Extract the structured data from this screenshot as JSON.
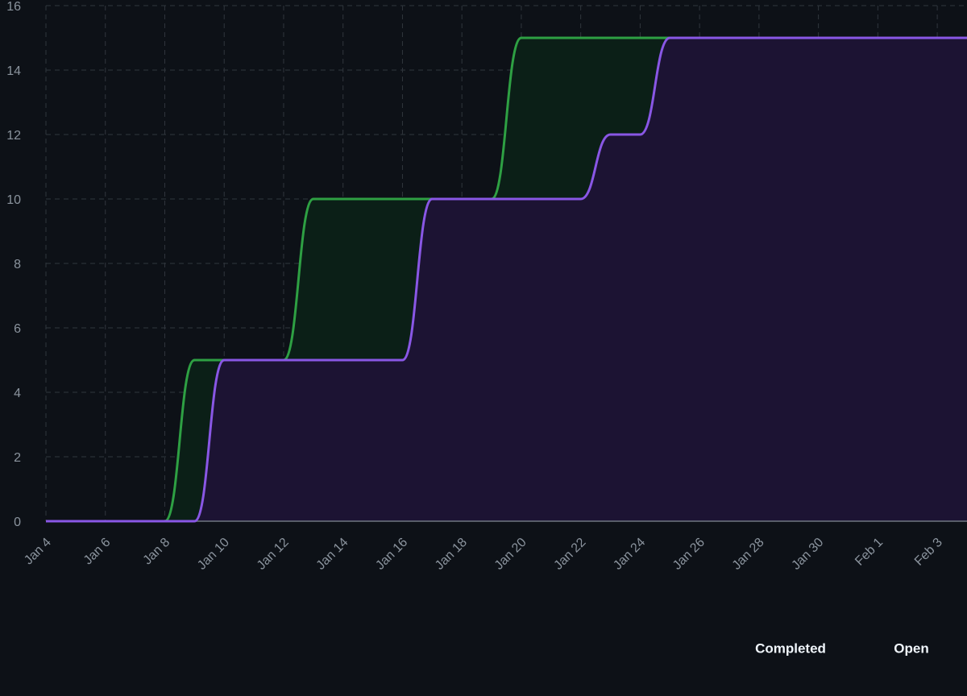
{
  "chart_data": {
    "type": "area-line",
    "x": [
      "Jan 4",
      "Jan 5",
      "Jan 6",
      "Jan 7",
      "Jan 8",
      "Jan 9",
      "Jan 10",
      "Jan 11",
      "Jan 12",
      "Jan 13",
      "Jan 14",
      "Jan 15",
      "Jan 16",
      "Jan 17",
      "Jan 18",
      "Jan 19",
      "Jan 20",
      "Jan 21",
      "Jan 22",
      "Jan 23",
      "Jan 24",
      "Jan 25",
      "Jan 26",
      "Jan 27",
      "Jan 28",
      "Jan 29",
      "Jan 30",
      "Jan 31",
      "Feb 1",
      "Feb 2",
      "Feb 3",
      "Feb 4"
    ],
    "series": [
      {
        "name": "Completed",
        "color": "#8957e5",
        "fill": "#1c1333",
        "values": [
          0,
          0,
          0,
          0,
          0,
          0,
          5,
          5,
          5,
          5,
          5,
          5,
          5,
          10,
          10,
          10,
          10,
          10,
          10,
          12,
          12,
          15,
          15,
          15,
          15,
          15,
          15,
          15,
          15,
          15,
          15,
          15
        ]
      },
      {
        "name": "Open",
        "color": "#2ea043",
        "fill": "#0b1f17",
        "values": [
          0,
          0,
          0,
          0,
          0,
          5,
          5,
          5,
          5,
          10,
          10,
          10,
          10,
          10,
          10,
          10,
          15,
          15,
          15,
          15,
          15,
          15,
          15,
          15,
          15,
          15,
          15,
          15,
          15,
          15,
          15,
          15
        ]
      }
    ],
    "xticks": [
      "Jan 4",
      "Jan 6",
      "Jan 8",
      "Jan 10",
      "Jan 12",
      "Jan 14",
      "Jan 16",
      "Jan 18",
      "Jan 20",
      "Jan 22",
      "Jan 24",
      "Jan 26",
      "Jan 28",
      "Jan 30",
      "Feb 1",
      "Feb 3"
    ],
    "ylim": [
      0,
      16
    ],
    "yticks": [
      0,
      2,
      4,
      6,
      8,
      10,
      12,
      14,
      16
    ],
    "grid": true
  }
}
